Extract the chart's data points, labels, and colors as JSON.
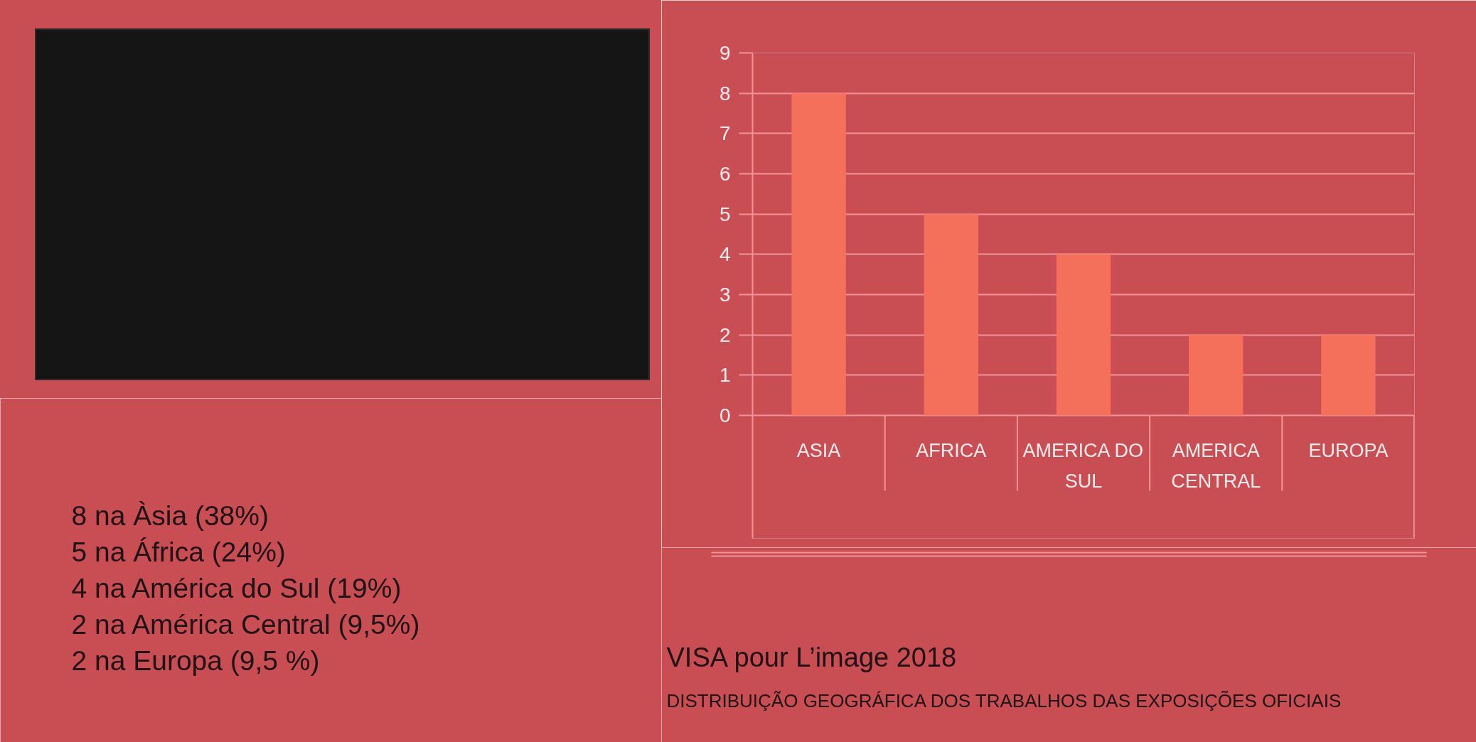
{
  "chart_data": {
    "type": "bar",
    "title": "VISA pour L’image 2018",
    "subtitle": "DISTRIBUIÇÃO GEOGRÁFICA DOS TRABALHOS DAS EXPOSIÇÕES OFICIAIS",
    "categories": [
      "ASIA",
      "AFRICA",
      "AMERICA DO SUL",
      "AMERICA CENTRAL",
      "EUROPA"
    ],
    "values": [
      8,
      5,
      4,
      2,
      2
    ],
    "color": "#f5705a",
    "ylim": [
      0,
      9
    ],
    "yticks": [
      0,
      1,
      2,
      3,
      4,
      5,
      6,
      7,
      8,
      9
    ],
    "grid": "y",
    "annotations": [
      "8 na Àsia (38%)",
      "5 na África (24%)",
      "4 na América do Sul (19%)",
      "2 na América Central (9,5%)",
      "2 na Europa (9,5 %)"
    ]
  }
}
